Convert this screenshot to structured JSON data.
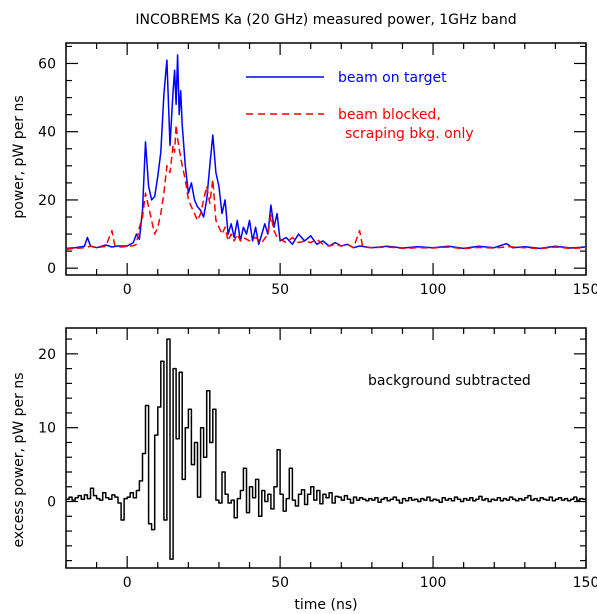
{
  "chart_data": [
    {
      "type": "line",
      "title": "INCOBREMS Ka (20 GHz) measured power, 1GHz band",
      "xlabel": "",
      "ylabel": "power, pW per ns",
      "xlim": [
        -20,
        150
      ],
      "ylim": [
        -2,
        66
      ],
      "xticks": [
        0,
        50,
        100,
        150
      ],
      "yticks": [
        0,
        20,
        40,
        60
      ],
      "xtick_labels": [
        "0",
        "50",
        "100",
        "150"
      ],
      "ytick_labels": [
        "0",
        "20",
        "40",
        "60"
      ],
      "legend": {
        "placement": "top-right",
        "entries": [
          {
            "label": "beam on target",
            "color": "#0000ff",
            "style": "solid"
          },
          {
            "label": "beam blocked,",
            "label2": "scraping bkg. only",
            "color": "#ff0000",
            "style": "dashed"
          }
        ]
      },
      "series": [
        {
          "name": "beam on target",
          "color": "#0000ff",
          "style": "solid",
          "points": [
            [
              -20,
              5.8
            ],
            [
              -17,
              6.0
            ],
            [
              -14,
              6.4
            ],
            [
              -13,
              9.0
            ],
            [
              -12,
              6.5
            ],
            [
              -10,
              6.0
            ],
            [
              -7,
              6.8
            ],
            [
              -5,
              6.2
            ],
            [
              -3,
              6.5
            ],
            [
              0,
              6.5
            ],
            [
              2,
              7.5
            ],
            [
              3,
              10.0
            ],
            [
              4,
              8.5
            ],
            [
              5,
              17.0
            ],
            [
              6,
              37.0
            ],
            [
              7,
              24.0
            ],
            [
              8,
              20.0
            ],
            [
              9,
              21.0
            ],
            [
              10,
              27.0
            ],
            [
              11,
              34.0
            ],
            [
              12,
              51.0
            ],
            [
              13,
              61.0
            ],
            [
              14,
              36.0
            ],
            [
              15,
              52.0
            ],
            [
              15.5,
              58.0
            ],
            [
              16,
              48.0
            ],
            [
              16.5,
              62.5
            ],
            [
              17,
              45.0
            ],
            [
              17.5,
              52.0
            ],
            [
              18,
              42.0
            ],
            [
              19,
              30.0
            ],
            [
              20,
              22.0
            ],
            [
              21,
              25.0
            ],
            [
              22,
              20.0
            ],
            [
              23,
              18.0
            ],
            [
              24,
              17.0
            ],
            [
              25,
              15.0
            ],
            [
              26,
              20.0
            ],
            [
              27,
              30.0
            ],
            [
              28,
              39.0
            ],
            [
              29,
              28.0
            ],
            [
              30,
              24.0
            ],
            [
              31,
              16.0
            ],
            [
              32,
              20.0
            ],
            [
              33,
              10.0
            ],
            [
              34,
              13.0
            ],
            [
              35,
              9.0
            ],
            [
              36,
              14.0
            ],
            [
              37,
              8.0
            ],
            [
              38,
              12.0
            ],
            [
              39,
              10.0
            ],
            [
              40,
              14.0
            ],
            [
              41,
              8.0
            ],
            [
              42,
              12.0
            ],
            [
              43,
              7.0
            ],
            [
              44,
              10.0
            ],
            [
              45,
              13.0
            ],
            [
              46,
              10.0
            ],
            [
              47,
              18.5
            ],
            [
              48,
              12.0
            ],
            [
              49,
              16.0
            ],
            [
              50,
              8.0
            ],
            [
              52,
              9.0
            ],
            [
              54,
              7.0
            ],
            [
              56,
              10.0
            ],
            [
              58,
              8.0
            ],
            [
              60,
              9.5
            ],
            [
              62,
              7.0
            ],
            [
              64,
              8.0
            ],
            [
              66,
              6.5
            ],
            [
              68,
              7.5
            ],
            [
              70,
              6.5
            ],
            [
              72,
              7.0
            ],
            [
              74,
              6.0
            ],
            [
              76,
              6.5
            ],
            [
              80,
              6.0
            ],
            [
              85,
              6.4
            ],
            [
              90,
              5.9
            ],
            [
              95,
              6.3
            ],
            [
              100,
              6.0
            ],
            [
              105,
              6.4
            ],
            [
              110,
              5.8
            ],
            [
              115,
              6.4
            ],
            [
              120,
              6.0
            ],
            [
              124,
              7.2
            ],
            [
              126,
              6.0
            ],
            [
              130,
              6.3
            ],
            [
              135,
              5.8
            ],
            [
              140,
              6.4
            ],
            [
              145,
              5.9
            ],
            [
              150,
              6.2
            ]
          ]
        },
        {
          "name": "beam blocked, scraping bkg. only",
          "color": "#ff0000",
          "style": "dashed",
          "points": [
            [
              -20,
              5.5
            ],
            [
              -17,
              5.8
            ],
            [
              -14,
              6.0
            ],
            [
              -12,
              6.4
            ],
            [
              -10,
              6.0
            ],
            [
              -7,
              6.4
            ],
            [
              -5,
              11.0
            ],
            [
              -4,
              6.5
            ],
            [
              -2,
              6.2
            ],
            [
              0,
              6.4
            ],
            [
              2,
              6.6
            ],
            [
              3,
              7.0
            ],
            [
              4,
              12.0
            ],
            [
              5,
              15.0
            ],
            [
              6,
              22.0
            ],
            [
              7,
              18.0
            ],
            [
              8,
              14.0
            ],
            [
              9,
              10.0
            ],
            [
              10,
              12.0
            ],
            [
              11,
              16.0
            ],
            [
              12,
              22.0
            ],
            [
              13,
              30.0
            ],
            [
              14,
              28.0
            ],
            [
              15,
              36.0
            ],
            [
              15.5,
              34.0
            ],
            [
              16,
              42.0
            ],
            [
              16.5,
              38.0
            ],
            [
              17,
              35.0
            ],
            [
              18,
              30.0
            ],
            [
              19,
              26.0
            ],
            [
              20,
              20.0
            ],
            [
              21,
              18.0
            ],
            [
              22,
              16.0
            ],
            [
              23,
              14.0
            ],
            [
              24,
              16.0
            ],
            [
              25,
              20.0
            ],
            [
              26,
              24.0
            ],
            [
              27,
              19.0
            ],
            [
              28,
              26.0
            ],
            [
              29,
              14.0
            ],
            [
              30,
              12.0
            ],
            [
              31,
              10.0
            ],
            [
              32,
              12.0
            ],
            [
              33,
              8.0
            ],
            [
              34,
              10.0
            ],
            [
              35,
              8.0
            ],
            [
              36,
              10.0
            ],
            [
              37,
              8.0
            ],
            [
              38,
              9.0
            ],
            [
              40,
              8.0
            ],
            [
              42,
              9.0
            ],
            [
              44,
              7.5
            ],
            [
              46,
              10.0
            ],
            [
              47,
              15.5
            ],
            [
              48,
              11.0
            ],
            [
              49,
              9.0
            ],
            [
              50,
              8.5
            ],
            [
              52,
              7.5
            ],
            [
              54,
              9.0
            ],
            [
              56,
              7.5
            ],
            [
              58,
              8.0
            ],
            [
              60,
              7.5
            ],
            [
              62,
              8.5
            ],
            [
              64,
              7.0
            ],
            [
              66,
              6.5
            ],
            [
              68,
              7.0
            ],
            [
              70,
              6.5
            ],
            [
              72,
              7.0
            ],
            [
              74,
              6.0
            ],
            [
              76,
              11.0
            ],
            [
              77,
              6.2
            ],
            [
              80,
              6.0
            ],
            [
              85,
              6.2
            ],
            [
              90,
              5.8
            ],
            [
              95,
              6.0
            ],
            [
              100,
              5.9
            ],
            [
              105,
              6.2
            ],
            [
              110,
              5.7
            ],
            [
              115,
              6.1
            ],
            [
              120,
              5.9
            ],
            [
              125,
              6.3
            ],
            [
              130,
              6.0
            ],
            [
              135,
              5.7
            ],
            [
              140,
              6.2
            ],
            [
              145,
              5.8
            ],
            [
              150,
              6.0
            ]
          ]
        }
      ]
    },
    {
      "type": "line",
      "subtype": "step",
      "xlabel": "time (ns)",
      "ylabel": "excess power, pW per ns",
      "annotation": "background subtracted",
      "xlim": [
        -20,
        150
      ],
      "ylim": [
        -9,
        23.5
      ],
      "xticks": [
        0,
        50,
        100,
        150
      ],
      "yticks": [
        0,
        10,
        20
      ],
      "xtick_labels": [
        "0",
        "50",
        "100",
        "150"
      ],
      "ytick_labels": [
        "0",
        "10",
        "20"
      ],
      "series": [
        {
          "color": "#000000",
          "style": "solid",
          "bin_width": 1,
          "x_start": -20,
          "values": [
            0.3,
            0.6,
            0.2,
            0.5,
            0.8,
            0.3,
            0.9,
            0.4,
            1.8,
            0.8,
            0.4,
            0.2,
            1.2,
            0.5,
            0.3,
            0.9,
            0.6,
            -0.2,
            -2.5,
            0.4,
            0.6,
            1.2,
            0.5,
            1.5,
            2.8,
            6.5,
            13.0,
            -3.0,
            -3.8,
            9.0,
            12.8,
            19.0,
            -2.5,
            22.0,
            -7.8,
            18.0,
            8.5,
            17.5,
            3.0,
            10.0,
            12.5,
            5.0,
            8.0,
            0.6,
            10.0,
            6.0,
            15.0,
            8.0,
            12.5,
            0.2,
            -0.2,
            4.0,
            1.0,
            -0.2,
            0.2,
            -2.2,
            0.4,
            1.5,
            4.5,
            -1.5,
            2.0,
            0.5,
            3.0,
            -2.0,
            1.5,
            0.0,
            1.0,
            -1.0,
            2.0,
            7.0,
            1.0,
            -1.3,
            0.4,
            4.5,
            0.2,
            -0.6,
            1.0,
            1.6,
            -0.4,
            1.0,
            2.0,
            0.2,
            1.5,
            -0.3,
            1.0,
            0.5,
            1.2,
            -0.2,
            0.7,
            0.6,
            0.2,
            0.8,
            0.3,
            -0.2,
            0.6,
            0.2,
            0.5,
            0.3,
            0.1,
            0.4,
            0.2,
            0.5,
            -0.1,
            0.3,
            0.5,
            0.1,
            0.3,
            0.6,
            0.2,
            -0.2,
            0.4,
            0.1,
            0.5,
            0.2,
            0.3,
            0.0,
            0.4,
            0.2,
            0.6,
            0.1,
            0.3,
            0.2,
            -0.1,
            0.5,
            0.2,
            0.4,
            0.1,
            0.6,
            0.3,
            0.0,
            0.4,
            0.2,
            0.5,
            0.1,
            0.3,
            0.7,
            0.2,
            0.4,
            0.0,
            0.3,
            0.2,
            0.5,
            0.1,
            0.4,
            0.2,
            0.6,
            0.3,
            0.1,
            0.4,
            0.2,
            0.5,
            0.8,
            0.2,
            0.4,
            0.1,
            0.5,
            0.3,
            0.2,
            0.6,
            0.1,
            0.3,
            0.5,
            0.2,
            0.4,
            0.1,
            0.3,
            0.6,
            0.2,
            0.4,
            0.3
          ]
        }
      ]
    }
  ]
}
